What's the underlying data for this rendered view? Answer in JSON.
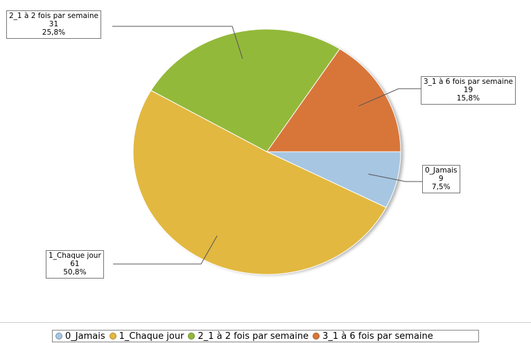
{
  "chart_data": {
    "type": "pie",
    "categories": [
      "0_Jamais",
      "1_Chaque jour",
      "2_1 à 2 fois par semaine",
      "3_1 à 6 fois par semaine"
    ],
    "values": [
      9,
      61,
      31,
      19
    ],
    "percentages": [
      "7,5%",
      "50,8%",
      "25,8%",
      "15,8%"
    ],
    "colors": [
      "#a6c6e2",
      "#e2b840",
      "#93b93a",
      "#d8763a"
    ],
    "legend_position": "bottom",
    "labels": [
      {
        "name": "0_Jamais",
        "value": "9",
        "pct": "7,5%"
      },
      {
        "name": "1_Chaque jour",
        "value": "61",
        "pct": "50,8%"
      },
      {
        "name": "2_1 à 2 fois par semaine",
        "value": "31",
        "pct": "25,8%"
      },
      {
        "name": "3_1 à 6 fois par semaine",
        "value": "19",
        "pct": "15,8%"
      }
    ]
  }
}
